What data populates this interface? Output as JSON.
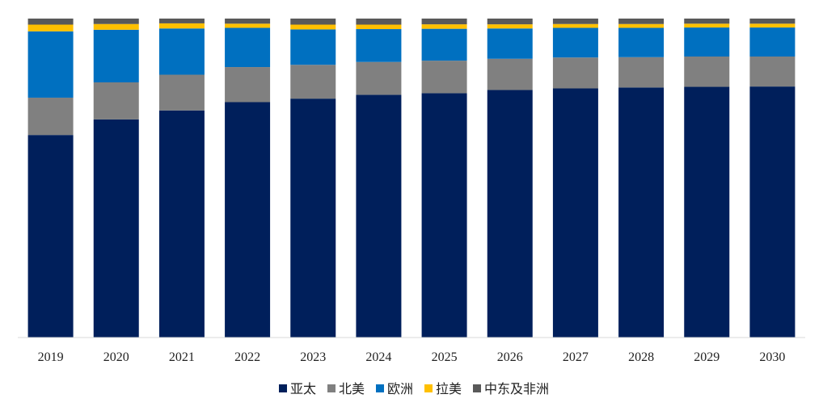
{
  "chart_data": {
    "type": "bar",
    "stacked": true,
    "normalized": true,
    "categories": [
      "2019",
      "2020",
      "2021",
      "2022",
      "2023",
      "2024",
      "2025",
      "2026",
      "2027",
      "2028",
      "2029",
      "2030"
    ],
    "series": [
      {
        "name": "亚太",
        "color": "#001F5B",
        "values": [
          63.5,
          68.4,
          71.2,
          73.8,
          74.9,
          76.1,
          76.6,
          77.6,
          78.1,
          78.4,
          78.6,
          78.7
        ]
      },
      {
        "name": "北美",
        "color": "#808080",
        "values": [
          11.7,
          11.6,
          11.2,
          11.0,
          10.6,
          10.3,
          10.2,
          9.8,
          9.7,
          9.5,
          9.5,
          9.4
        ]
      },
      {
        "name": "欧洲",
        "color": "#0070C0",
        "values": [
          20.8,
          16.5,
          14.5,
          12.3,
          11.1,
          10.3,
          10.0,
          9.5,
          9.3,
          9.2,
          9.1,
          9.1
        ]
      },
      {
        "name": "拉美",
        "color": "#FFC000",
        "values": [
          2.1,
          1.8,
          1.6,
          1.3,
          1.5,
          1.4,
          1.4,
          1.3,
          1.2,
          1.2,
          1.2,
          1.2
        ]
      },
      {
        "name": "中东及非洲",
        "color": "#595959",
        "values": [
          1.9,
          1.7,
          1.5,
          1.6,
          1.9,
          1.9,
          1.8,
          1.8,
          1.7,
          1.7,
          1.6,
          1.6
        ]
      }
    ],
    "ylim": [
      0,
      100
    ],
    "grid": false,
    "legend": "bottom"
  }
}
